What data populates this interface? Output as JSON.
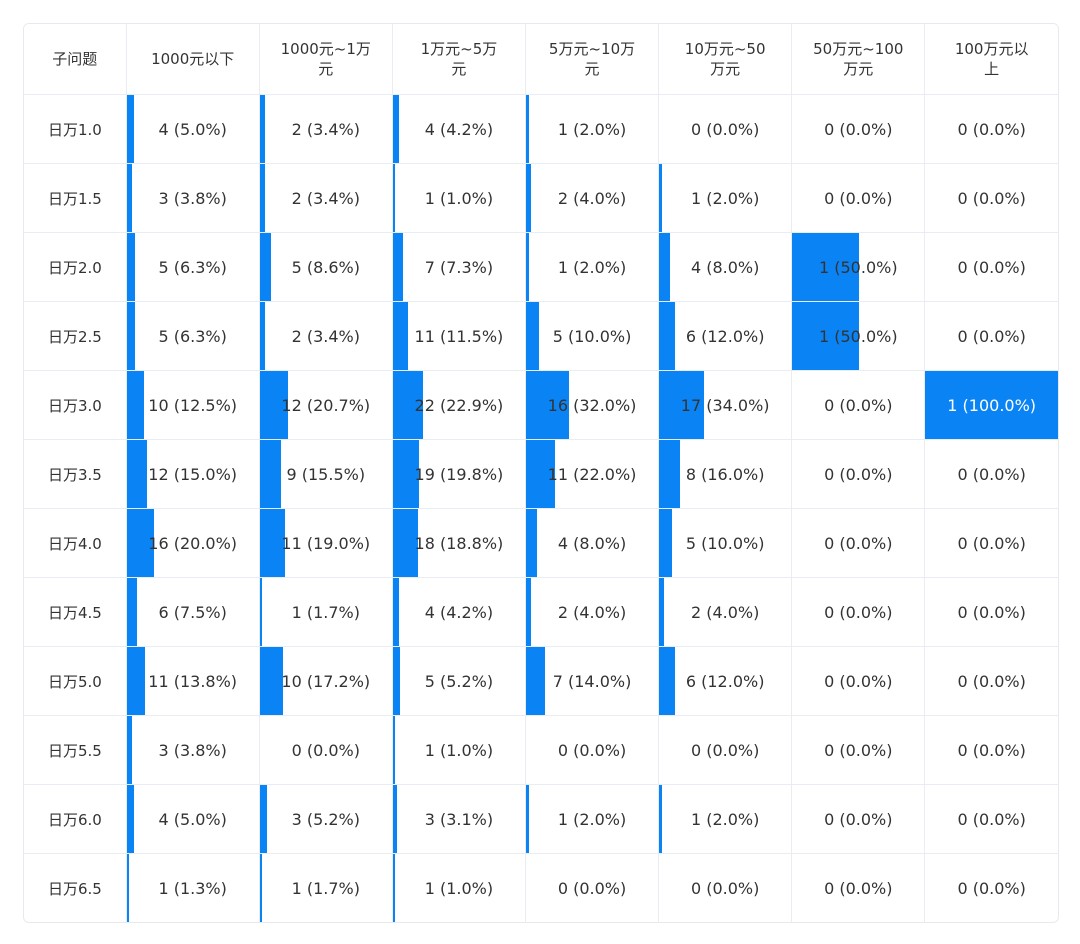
{
  "chart_data": {
    "type": "table",
    "corner_label": "子问题",
    "columns": [
      "1000元以下",
      "1000元~1万元",
      "1万元~5万元",
      "5万元~10万元",
      "10万元~50万元",
      "50万元~100万元",
      "100万元以上"
    ],
    "column_header_lines": [
      [
        "1000元以下"
      ],
      [
        "1000元~1万",
        "元"
      ],
      [
        "1万元~5万",
        "元"
      ],
      [
        "5万元~10万",
        "元"
      ],
      [
        "10万元~50",
        "万元"
      ],
      [
        "50万元~100",
        "万元"
      ],
      [
        "100万元以",
        "上"
      ]
    ],
    "rows": [
      {
        "label": "日万1.0",
        "cells": [
          [
            4,
            5.0
          ],
          [
            2,
            3.4
          ],
          [
            4,
            4.2
          ],
          [
            1,
            2.0
          ],
          [
            0,
            0.0
          ],
          [
            0,
            0.0
          ],
          [
            0,
            0.0
          ]
        ]
      },
      {
        "label": "日万1.5",
        "cells": [
          [
            3,
            3.8
          ],
          [
            2,
            3.4
          ],
          [
            1,
            1.0
          ],
          [
            2,
            4.0
          ],
          [
            1,
            2.0
          ],
          [
            0,
            0.0
          ],
          [
            0,
            0.0
          ]
        ]
      },
      {
        "label": "日万2.0",
        "cells": [
          [
            5,
            6.3
          ],
          [
            5,
            8.6
          ],
          [
            7,
            7.3
          ],
          [
            1,
            2.0
          ],
          [
            4,
            8.0
          ],
          [
            1,
            50.0
          ],
          [
            0,
            0.0
          ]
        ]
      },
      {
        "label": "日万2.5",
        "cells": [
          [
            5,
            6.3
          ],
          [
            2,
            3.4
          ],
          [
            11,
            11.5
          ],
          [
            5,
            10.0
          ],
          [
            6,
            12.0
          ],
          [
            1,
            50.0
          ],
          [
            0,
            0.0
          ]
        ]
      },
      {
        "label": "日万3.0",
        "cells": [
          [
            10,
            12.5
          ],
          [
            12,
            20.7
          ],
          [
            22,
            22.9
          ],
          [
            16,
            32.0
          ],
          [
            17,
            34.0
          ],
          [
            0,
            0.0
          ],
          [
            1,
            100.0
          ]
        ]
      },
      {
        "label": "日万3.5",
        "cells": [
          [
            12,
            15.0
          ],
          [
            9,
            15.5
          ],
          [
            19,
            19.8
          ],
          [
            11,
            22.0
          ],
          [
            8,
            16.0
          ],
          [
            0,
            0.0
          ],
          [
            0,
            0.0
          ]
        ]
      },
      {
        "label": "日万4.0",
        "cells": [
          [
            16,
            20.0
          ],
          [
            11,
            19.0
          ],
          [
            18,
            18.8
          ],
          [
            4,
            8.0
          ],
          [
            5,
            10.0
          ],
          [
            0,
            0.0
          ],
          [
            0,
            0.0
          ]
        ]
      },
      {
        "label": "日万4.5",
        "cells": [
          [
            6,
            7.5
          ],
          [
            1,
            1.7
          ],
          [
            4,
            4.2
          ],
          [
            2,
            4.0
          ],
          [
            2,
            4.0
          ],
          [
            0,
            0.0
          ],
          [
            0,
            0.0
          ]
        ]
      },
      {
        "label": "日万5.0",
        "cells": [
          [
            11,
            13.8
          ],
          [
            10,
            17.2
          ],
          [
            5,
            5.2
          ],
          [
            7,
            14.0
          ],
          [
            6,
            12.0
          ],
          [
            0,
            0.0
          ],
          [
            0,
            0.0
          ]
        ]
      },
      {
        "label": "日万5.5",
        "cells": [
          [
            3,
            3.8
          ],
          [
            0,
            0.0
          ],
          [
            1,
            1.0
          ],
          [
            0,
            0.0
          ],
          [
            0,
            0.0
          ],
          [
            0,
            0.0
          ],
          [
            0,
            0.0
          ]
        ]
      },
      {
        "label": "日万6.0",
        "cells": [
          [
            4,
            5.0
          ],
          [
            3,
            5.2
          ],
          [
            3,
            3.1
          ],
          [
            1,
            2.0
          ],
          [
            1,
            2.0
          ],
          [
            0,
            0.0
          ],
          [
            0,
            0.0
          ]
        ]
      },
      {
        "label": "日万6.5",
        "cells": [
          [
            1,
            1.3
          ],
          [
            1,
            1.7
          ],
          [
            1,
            1.0
          ],
          [
            0,
            0.0
          ],
          [
            0,
            0.0
          ],
          [
            0,
            0.0
          ],
          [
            0,
            0.0
          ]
        ]
      }
    ],
    "bar_color": "#0a84f5",
    "bar_metric": "percent"
  }
}
